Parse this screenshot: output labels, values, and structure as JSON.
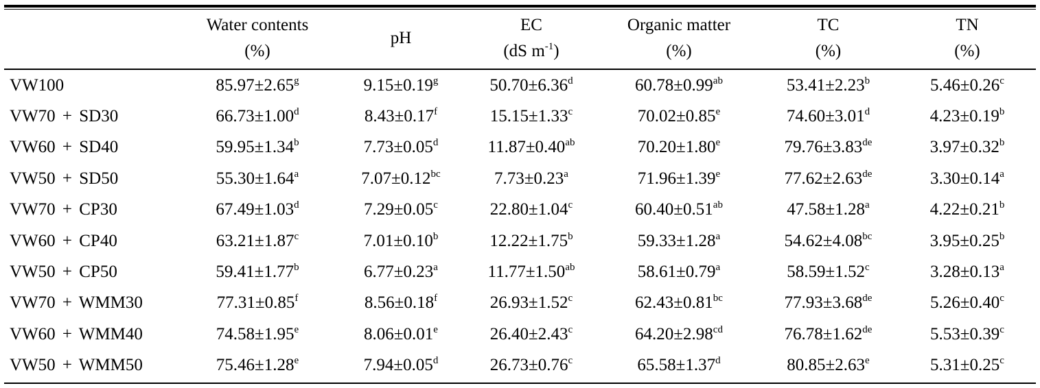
{
  "table": {
    "columns": [
      {
        "line1": "",
        "line2": ""
      },
      {
        "line1": "Water  contents",
        "line2": "(%)"
      },
      {
        "line1": "pH",
        "line2": ""
      },
      {
        "line1": "EC",
        "line2_main": "(dS  m",
        "line2_sup": "-1",
        "line2_end": ")"
      },
      {
        "line1": "Organic  matter",
        "line2": "(%)"
      },
      {
        "line1": "TC",
        "line2": "(%)"
      },
      {
        "line1": "TN",
        "line2": "(%)"
      }
    ],
    "rows": [
      {
        "treatment": "VW100",
        "cells": [
          [
            "85.97±2.65",
            "g"
          ],
          [
            "9.15±0.19",
            "g"
          ],
          [
            "50.70±6.36",
            "d"
          ],
          [
            "60.78±0.99",
            "ab"
          ],
          [
            "53.41±2.23",
            "b"
          ],
          [
            "5.46±0.26",
            "c"
          ]
        ]
      },
      {
        "treatment": "VW70 + SD30",
        "cells": [
          [
            "66.73±1.00",
            "d"
          ],
          [
            "8.43±0.17",
            "f"
          ],
          [
            "15.15±1.33",
            "c"
          ],
          [
            "70.02±0.85",
            "e"
          ],
          [
            "74.60±3.01",
            "d"
          ],
          [
            "4.23±0.19",
            "b"
          ]
        ]
      },
      {
        "treatment": "VW60 + SD40",
        "cells": [
          [
            "59.95±1.34",
            "b"
          ],
          [
            "7.73±0.05",
            "d"
          ],
          [
            "11.87±0.40",
            "ab"
          ],
          [
            "70.20±1.80",
            "e"
          ],
          [
            "79.76±3.83",
            "de"
          ],
          [
            "3.97±0.32",
            "b"
          ]
        ]
      },
      {
        "treatment": "VW50 + SD50",
        "cells": [
          [
            "55.30±1.64",
            "a"
          ],
          [
            "7.07±0.12",
            "bc"
          ],
          [
            "7.73±0.23",
            "a"
          ],
          [
            "71.96±1.39",
            "e"
          ],
          [
            "77.62±2.63",
            "de"
          ],
          [
            "3.30±0.14",
            "a"
          ]
        ]
      },
      {
        "treatment": "VW70 + CP30",
        "cells": [
          [
            "67.49±1.03",
            "d"
          ],
          [
            "7.29±0.05",
            "c"
          ],
          [
            "22.80±1.04",
            "c"
          ],
          [
            "60.40±0.51",
            "ab"
          ],
          [
            "47.58±1.28",
            "a"
          ],
          [
            "4.22±0.21",
            "b"
          ]
        ]
      },
      {
        "treatment": "VW60 + CP40",
        "cells": [
          [
            "63.21±1.87",
            "c"
          ],
          [
            "7.01±0.10",
            "b"
          ],
          [
            "12.22±1.75",
            "b"
          ],
          [
            "59.33±1.28",
            "a"
          ],
          [
            "54.62±4.08",
            "bc"
          ],
          [
            "3.95±0.25",
            "b"
          ]
        ]
      },
      {
        "treatment": "VW50 + CP50",
        "cells": [
          [
            "59.41±1.77",
            "b"
          ],
          [
            "6.77±0.23",
            "a"
          ],
          [
            "11.77±1.50",
            "ab"
          ],
          [
            "58.61±0.79",
            "a"
          ],
          [
            "58.59±1.52",
            "c"
          ],
          [
            "3.28±0.13",
            "a"
          ]
        ]
      },
      {
        "treatment": "VW70 + WMM30",
        "cells": [
          [
            "77.31±0.85",
            "f"
          ],
          [
            "8.56±0.18",
            "f"
          ],
          [
            "26.93±1.52",
            "c"
          ],
          [
            "62.43±0.81",
            "bc"
          ],
          [
            "77.93±3.68",
            "de"
          ],
          [
            "5.26±0.40",
            "c"
          ]
        ]
      },
      {
        "treatment": "VW60 + WMM40",
        "cells": [
          [
            "74.58±1.95",
            "e"
          ],
          [
            "8.06±0.01",
            "e"
          ],
          [
            "26.40±2.43",
            "c"
          ],
          [
            "64.20±2.98",
            "cd"
          ],
          [
            "76.78±1.62",
            "de"
          ],
          [
            "5.53±0.39",
            "c"
          ]
        ]
      },
      {
        "treatment": "VW50 + WMM50",
        "cells": [
          [
            "75.46±1.28",
            "e"
          ],
          [
            "7.94±0.05",
            "d"
          ],
          [
            "26.73±0.76",
            "c"
          ],
          [
            "65.58±1.37",
            "d"
          ],
          [
            "80.85±2.63",
            "e"
          ],
          [
            "5.31±0.25",
            "c"
          ]
        ]
      }
    ]
  }
}
